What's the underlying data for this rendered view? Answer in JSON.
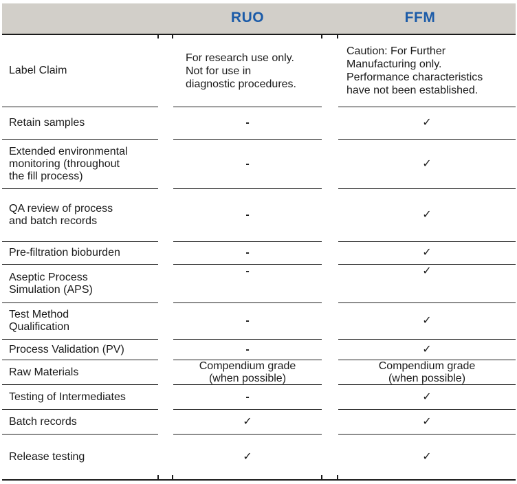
{
  "table": {
    "columns": [
      {
        "id": "feature",
        "label": ""
      },
      {
        "id": "ruo",
        "label": "RUO"
      },
      {
        "id": "ffm",
        "label": "FFM"
      }
    ],
    "rows": [
      {
        "feature": "Label Claim",
        "ruo": "For research use only.\nNot for use in\ndiagnostic procedures.",
        "ffm": "Caution: For Further\nManufacturing only.\nPerformance characteristics\nhave not been established."
      },
      {
        "feature": "Retain samples",
        "ruo": "-",
        "ffm": "✓"
      },
      {
        "feature": "Extended environmental\nmonitoring (throughout\nthe fill process)",
        "ruo": "-",
        "ffm": "✓"
      },
      {
        "feature": "QA review of process\nand batch records",
        "ruo": "-",
        "ffm": "✓"
      },
      {
        "feature": "Pre-filtration bioburden",
        "ruo": "-",
        "ffm": "✓"
      },
      {
        "feature": "Aseptic Process\nSimulation (APS)",
        "ruo": "-",
        "ffm": "✓"
      },
      {
        "feature": "Test Method\nQualification",
        "ruo": "-",
        "ffm": "✓"
      },
      {
        "feature": "Process Validation (PV)",
        "ruo": "-",
        "ffm": "✓"
      },
      {
        "feature": "Raw Materials",
        "ruo": "Compendium grade\n(when possible)",
        "ffm": "Compendium grade\n(when possible)"
      },
      {
        "feature": "Testing of Intermediates",
        "ruo": "-",
        "ffm": "✓"
      },
      {
        "feature": "Batch records",
        "ruo": "✓",
        "ffm": "✓"
      },
      {
        "feature": "Release testing",
        "ruo": "✓",
        "ffm": "✓"
      }
    ]
  },
  "icons": {
    "check": "✓",
    "not-applicable-dash": "-"
  },
  "colors": {
    "header_background": "#d2cfc9",
    "header_text": "#1b5ba8",
    "rule": "#1a1a1a",
    "body_text": "#1a1a1a"
  }
}
